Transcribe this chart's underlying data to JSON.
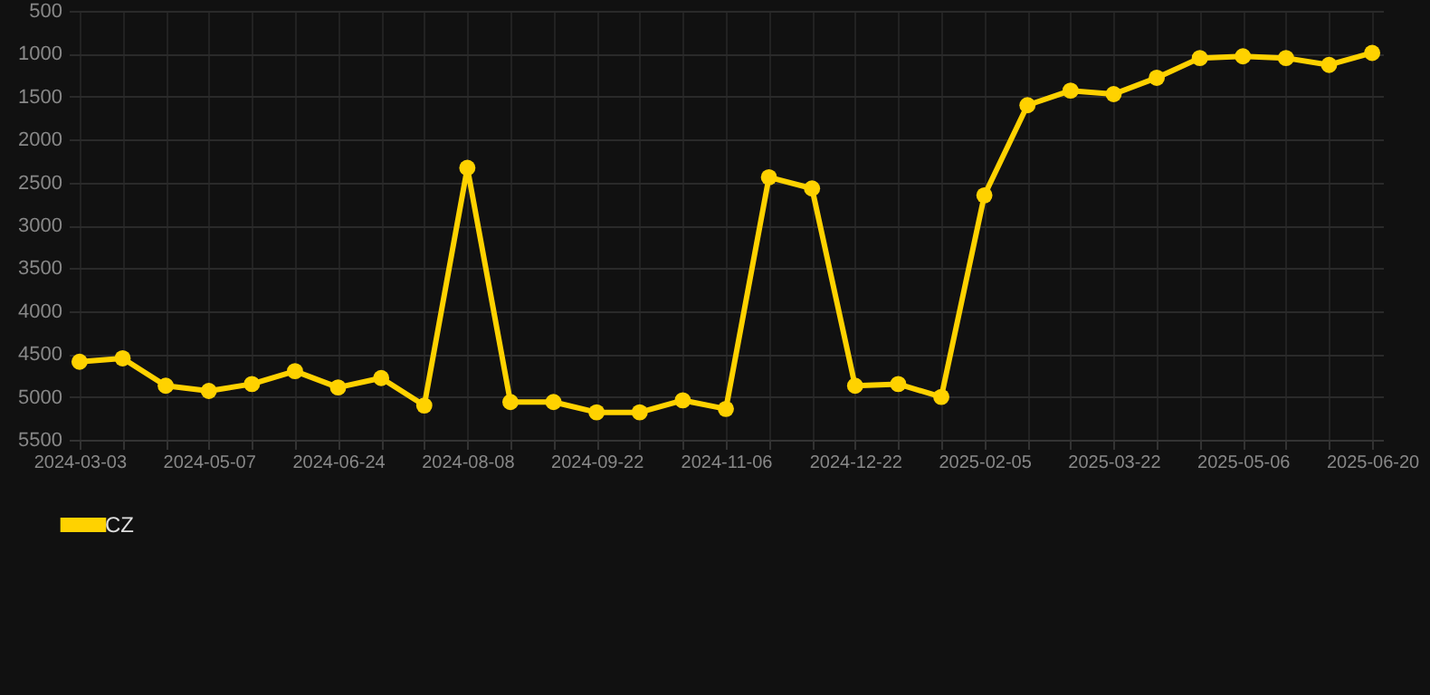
{
  "chart_data": {
    "type": "line",
    "categories": [
      "2024-03-03",
      null,
      null,
      "2024-05-07",
      null,
      null,
      "2024-06-24",
      null,
      null,
      "2024-08-08",
      null,
      null,
      "2024-09-22",
      null,
      null,
      "2024-11-06",
      null,
      null,
      "2024-12-22",
      null,
      null,
      "2025-02-05",
      null,
      null,
      "2025-03-22",
      null,
      null,
      "2025-05-06",
      null,
      null,
      "2025-06-20"
    ],
    "series": [
      {
        "name": "CZ",
        "color": "#ffd200",
        "values": [
          4590,
          4550,
          4870,
          4930,
          4850,
          4700,
          4890,
          4780,
          5100,
          2330,
          5060,
          5060,
          5180,
          5180,
          5040,
          5140,
          2440,
          2570,
          4870,
          4850,
          5000,
          2650,
          1600,
          1430,
          1470,
          1280,
          1050,
          1030,
          1050,
          1130,
          990
        ]
      }
    ],
    "ylim": [
      5500,
      500
    ],
    "yticks": [
      500,
      1000,
      1500,
      2000,
      2500,
      3000,
      3500,
      4000,
      4500,
      5000,
      5500
    ],
    "grid": true,
    "legend": "bottom",
    "marker": "circle",
    "line_style": "solid"
  }
}
